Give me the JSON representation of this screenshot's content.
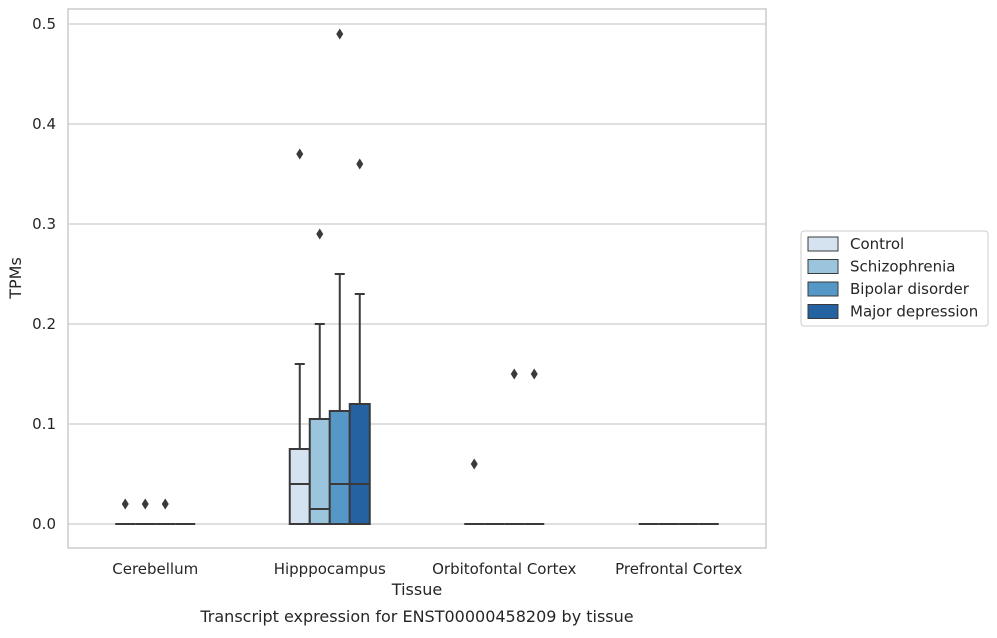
{
  "chart_data": {
    "type": "box",
    "title": "Transcript expression for ENST00000458209 by tissue",
    "xlabel": "Tissue",
    "ylabel": "TPMs",
    "ylim": [
      -0.024,
      0.515
    ],
    "yticks": [
      0.0,
      0.1,
      0.2,
      0.3,
      0.4,
      0.5
    ],
    "ytick_labels": [
      "0.0",
      "0.1",
      "0.2",
      "0.3",
      "0.4",
      "0.5"
    ],
    "grid": true,
    "legend_position": "right",
    "categories": [
      "Cerebellum",
      "Hipppocampus",
      "Orbitofontal Cortex",
      "Prefrontal Cortex"
    ],
    "series": [
      {
        "name": "Control",
        "color": "#d5e3f1",
        "boxes": [
          {
            "q1": 0.0,
            "median": 0.0,
            "q3": 0.0,
            "whisker_low": 0.0,
            "whisker_high": 0.0,
            "outliers": [
              0.02
            ]
          },
          {
            "q1": 0.0,
            "median": 0.04,
            "q3": 0.075,
            "whisker_low": 0.0,
            "whisker_high": 0.16,
            "outliers": [
              0.37
            ]
          },
          {
            "q1": 0.0,
            "median": 0.0,
            "q3": 0.0,
            "whisker_low": 0.0,
            "whisker_high": 0.0,
            "outliers": [
              0.06
            ]
          },
          {
            "q1": 0.0,
            "median": 0.0,
            "q3": 0.0,
            "whisker_low": 0.0,
            "whisker_high": 0.0,
            "outliers": []
          }
        ]
      },
      {
        "name": "Schizophrenia",
        "color": "#9ac5dd",
        "boxes": [
          {
            "q1": 0.0,
            "median": 0.0,
            "q3": 0.0,
            "whisker_low": 0.0,
            "whisker_high": 0.0,
            "outliers": [
              0.02
            ]
          },
          {
            "q1": 0.0,
            "median": 0.015,
            "q3": 0.105,
            "whisker_low": 0.0,
            "whisker_high": 0.2,
            "outliers": [
              0.29
            ]
          },
          {
            "q1": 0.0,
            "median": 0.0,
            "q3": 0.0,
            "whisker_low": 0.0,
            "whisker_high": 0.0,
            "outliers": []
          },
          {
            "q1": 0.0,
            "median": 0.0,
            "q3": 0.0,
            "whisker_low": 0.0,
            "whisker_high": 0.0,
            "outliers": []
          }
        ]
      },
      {
        "name": "Bipolar disorder",
        "color": "#5598c8",
        "boxes": [
          {
            "q1": 0.0,
            "median": 0.0,
            "q3": 0.0,
            "whisker_low": 0.0,
            "whisker_high": 0.0,
            "outliers": [
              0.02
            ]
          },
          {
            "q1": 0.0,
            "median": 0.04,
            "q3": 0.113,
            "whisker_low": 0.0,
            "whisker_high": 0.25,
            "outliers": [
              0.49
            ]
          },
          {
            "q1": 0.0,
            "median": 0.0,
            "q3": 0.0,
            "whisker_low": 0.0,
            "whisker_high": 0.0,
            "outliers": [
              0.15
            ]
          },
          {
            "q1": 0.0,
            "median": 0.0,
            "q3": 0.0,
            "whisker_low": 0.0,
            "whisker_high": 0.0,
            "outliers": []
          }
        ]
      },
      {
        "name": "Major depression",
        "color": "#2462a2",
        "boxes": [
          {
            "q1": 0.0,
            "median": 0.0,
            "q3": 0.0,
            "whisker_low": 0.0,
            "whisker_high": 0.0,
            "outliers": []
          },
          {
            "q1": 0.0,
            "median": 0.04,
            "q3": 0.12,
            "whisker_low": 0.0,
            "whisker_high": 0.23,
            "outliers": [
              0.36
            ]
          },
          {
            "q1": 0.0,
            "median": 0.0,
            "q3": 0.0,
            "whisker_low": 0.0,
            "whisker_high": 0.0,
            "outliers": [
              0.15
            ]
          },
          {
            "q1": 0.0,
            "median": 0.0,
            "q3": 0.0,
            "whisker_low": 0.0,
            "whisker_high": 0.0,
            "outliers": []
          }
        ]
      }
    ],
    "colors": {
      "grid": "#cccccc",
      "frame": "#cccccc",
      "box_edge": "#3a3a3a",
      "outlier": "#3a3a3a",
      "text": "#262626",
      "background": "#ffffff"
    }
  }
}
